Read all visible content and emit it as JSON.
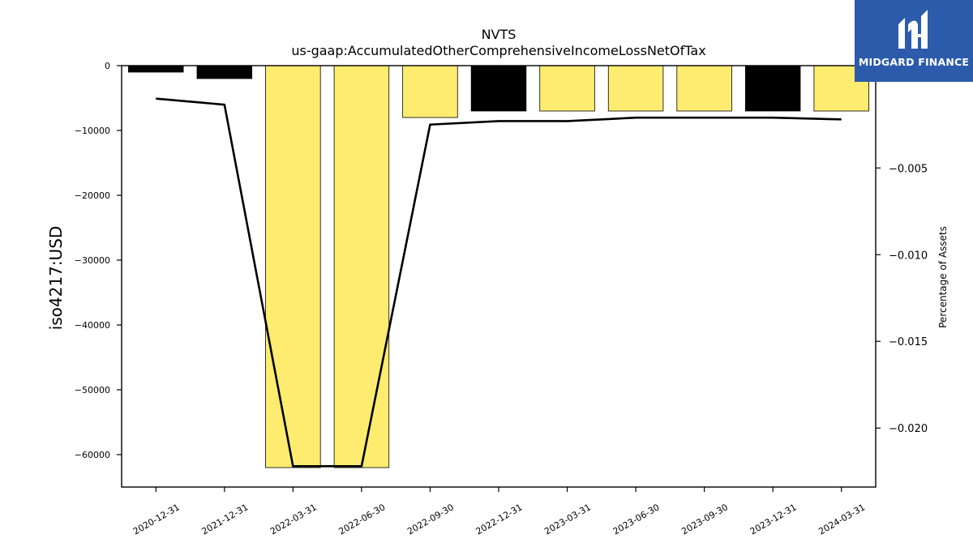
{
  "chart_data": {
    "type": "bar",
    "title": "NVTS",
    "subtitle": "us-gaap:AccumulatedOtherComprehensiveIncomeLossNetOfTax",
    "ylabel": "iso4217:USD",
    "ylabel_right": "Percentage of Assets",
    "categories": [
      "2020-12-31",
      "2021-12-31",
      "2022-03-31",
      "2022-06-30",
      "2022-09-30",
      "2022-12-31",
      "2023-03-31",
      "2023-06-30",
      "2023-09-30",
      "2023-12-31",
      "2024-03-31"
    ],
    "values": [
      -1000,
      -2000,
      -62000,
      -62000,
      -8000,
      -7000,
      -7000,
      -7000,
      -7000,
      -7000,
      -7000
    ],
    "bar_colors": [
      "#000000",
      "#000000",
      "#fdec6f",
      "#fdec6f",
      "#fdec6f",
      "#000000",
      "#fdec6f",
      "#fdec6f",
      "#fdec6f",
      "#000000",
      "#fdec6f"
    ],
    "ylim": [
      -65000,
      0
    ],
    "yticks": [
      0,
      -10000,
      -20000,
      -30000,
      -40000,
      -50000,
      -60000
    ],
    "ytick_labels": [
      "0",
      "−10000",
      "−20000",
      "−30000",
      "−40000",
      "−50000",
      "−60000"
    ],
    "line_values": [
      -0.001,
      -0.00135,
      -0.0222,
      -0.0222,
      -0.0025,
      -0.0023,
      -0.0023,
      -0.0021,
      -0.0021,
      -0.0021,
      -0.0022
    ],
    "ylim_right": [
      -0.0234,
      0.0009
    ],
    "yticks_right": [
      -0.005,
      -0.01,
      -0.015,
      -0.02
    ],
    "ytick_labels_right": [
      "−0.005",
      "−0.010",
      "−0.015",
      "−0.020"
    ],
    "grid": false,
    "legend": "none"
  },
  "logo": {
    "brand": "MIDGARD FINANCE"
  }
}
